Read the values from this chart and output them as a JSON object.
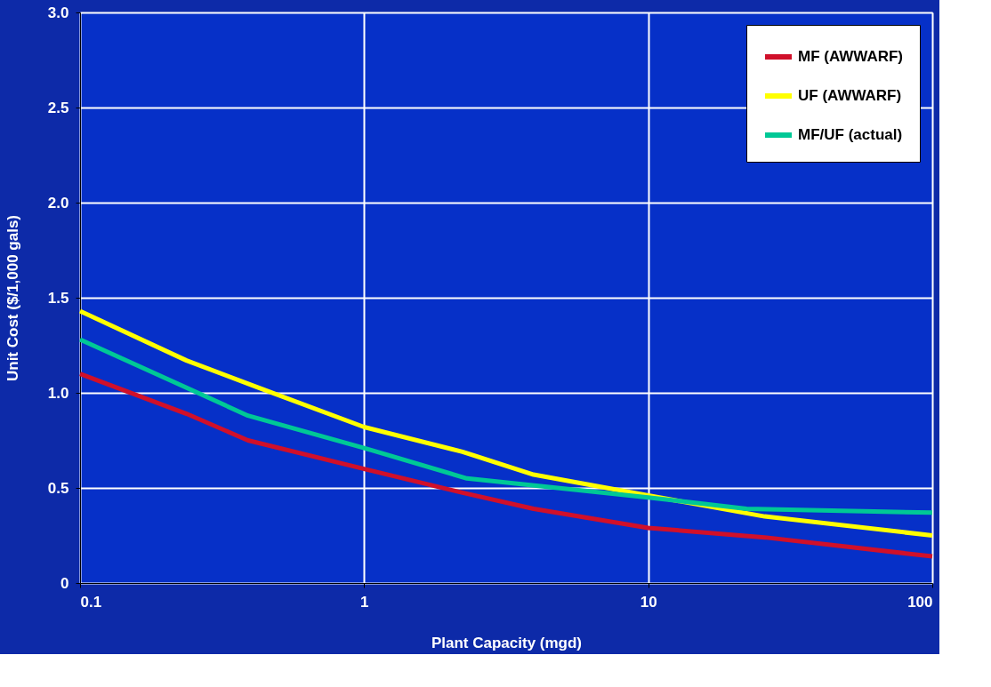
{
  "chart_data": {
    "type": "line",
    "xlabel": "Plant Capacity (mgd)",
    "ylabel": "Unit Cost ($/1,000 gals)",
    "log": "x",
    "xlim": [
      0.1,
      100
    ],
    "xticks": [
      0.1,
      1,
      10,
      100
    ],
    "ylim": [
      0,
      3.0
    ],
    "yticks": [
      0,
      {
        "value": 0.5,
        "label": "0.5"
      },
      {
        "value": 1,
        "label": "1.0"
      },
      {
        "value": 1.5,
        "label": "1.5"
      },
      {
        "value": 2,
        "label": "2.0"
      },
      {
        "value": 2.5,
        "label": "2.5"
      },
      {
        "value": 3,
        "label": "3.0"
      }
    ],
    "grid": true,
    "legend": "top right",
    "line_style": "solid",
    "marker": "none",
    "series": [
      {
        "name": "MF (AWWARF)",
        "color": "#d0102a",
        "x": [
          0.1,
          0.237,
          0.39,
          1,
          2.22,
          3.95,
          10,
          25.7,
          100
        ],
        "values": [
          1.1,
          0.89,
          0.75,
          0.6,
          0.475,
          0.39,
          0.29,
          0.24,
          0.14
        ]
      },
      {
        "name": "UF (AWWARF)",
        "color": "#ffff00",
        "x": [
          0.1,
          0.237,
          0.42,
          1,
          2.22,
          3.95,
          10,
          25.7,
          100
        ],
        "values": [
          1.43,
          1.17,
          1.03,
          0.82,
          0.69,
          0.57,
          0.46,
          0.35,
          0.25
        ]
      },
      {
        "name": "MF/UF (actual)",
        "color": "#00c896",
        "x": [
          0.1,
          0.39,
          1,
          2.3,
          10,
          22.2,
          100
        ],
        "values": [
          1.28,
          0.88,
          0.71,
          0.55,
          0.45,
          0.39,
          0.37
        ]
      }
    ]
  }
}
